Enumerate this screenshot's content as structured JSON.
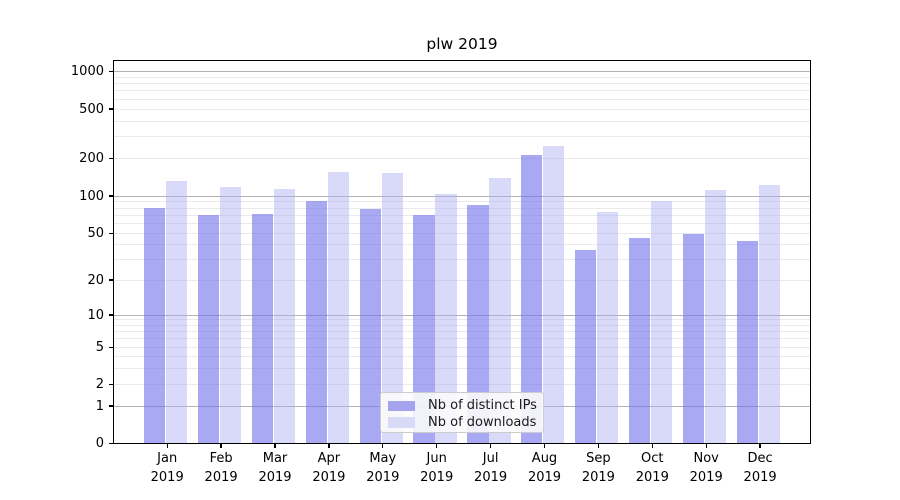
{
  "title": "plw 2019",
  "chart_data": {
    "type": "bar",
    "title": "plw 2019",
    "months": [
      "Jan",
      "Feb",
      "Mar",
      "Apr",
      "May",
      "Jun",
      "Jul",
      "Aug",
      "Sep",
      "Oct",
      "Nov",
      "Dec"
    ],
    "year": "2019",
    "series": [
      {
        "name": "Nb of distinct IPs",
        "values": [
          80,
          70,
          72,
          91,
          78,
          70,
          85,
          215,
          36,
          46,
          50,
          43
        ],
        "swatch_color": "#a4a4ee",
        "bar_fill": "rgba(117,117,235,0.62)"
      },
      {
        "name": "Nb of downloads",
        "values": [
          133,
          119,
          114,
          155,
          152,
          103,
          140,
          250,
          75,
          91,
          112,
          123
        ],
        "swatch_color": "#d9d9f8",
        "bar_fill": "rgba(170,170,242,0.45)"
      }
    ],
    "y_axis": {
      "ticks": [
        1000,
        500,
        200,
        100,
        50,
        20,
        10,
        5,
        2,
        1,
        0
      ],
      "scale": "symlog",
      "range": [
        0,
        1240
      ]
    },
    "grid": true,
    "legend_position": "lower center",
    "colors": {
      "grid_minor": "#eaeaea",
      "grid_major": "#b3b3b3",
      "spine": "#000000"
    }
  }
}
